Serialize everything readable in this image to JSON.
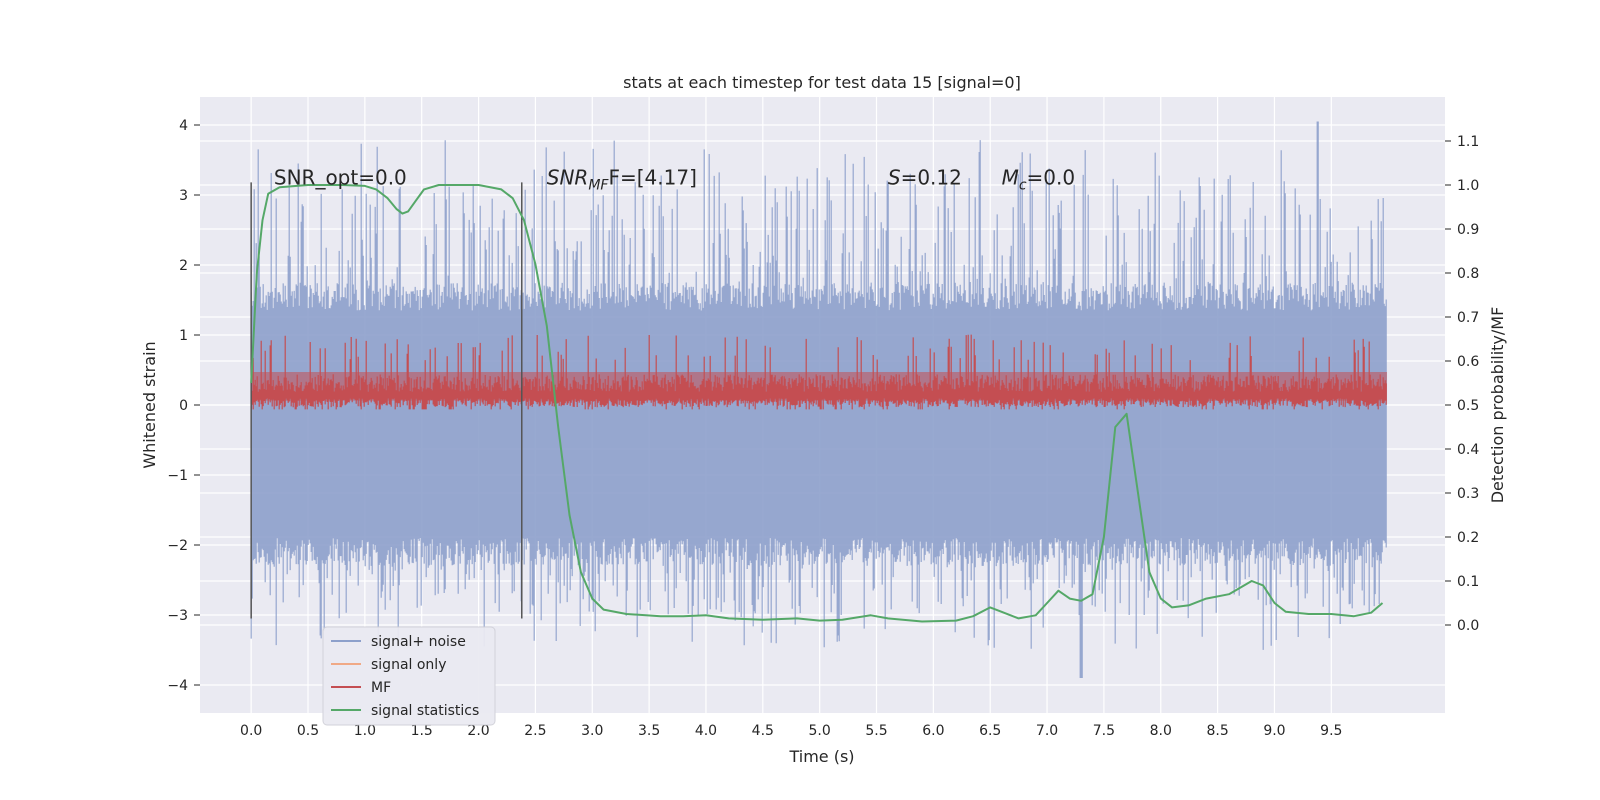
{
  "chart_data": {
    "type": "line",
    "title": "stats at each timestep for test data 15 [signal=0]",
    "xlabel": "Time (s)",
    "ylabel_left": "Whitened strain",
    "ylabel_right": "Detection probability/MF",
    "xlim": [
      -0.45,
      10.5
    ],
    "ylim_left": [
      -4.4,
      4.4
    ],
    "ylim_right": [
      -0.2,
      1.2
    ],
    "x_ticks": [
      "0.0",
      "0.5",
      "1.0",
      "1.5",
      "2.0",
      "2.5",
      "3.0",
      "3.5",
      "4.0",
      "4.5",
      "5.0",
      "5.5",
      "6.0",
      "6.5",
      "7.0",
      "7.5",
      "8.0",
      "8.5",
      "9.0",
      "9.5"
    ],
    "y_ticks_left": [
      "4",
      "3",
      "2",
      "1",
      "0",
      "−1",
      "−2",
      "−3",
      "−4"
    ],
    "y_ticks_right": [
      "1.1",
      "1.0",
      "0.9",
      "0.8",
      "0.7",
      "0.6",
      "0.5",
      "0.4",
      "0.3",
      "0.2",
      "0.1",
      "0.0"
    ],
    "grid": true,
    "colors": {
      "background": "#eaeaf2",
      "grid": "#ffffff",
      "noise": "#8da0cb",
      "signal_only": "#f0a986",
      "mf": "#c44e52",
      "stats": "#55a868",
      "marker": "#555555"
    },
    "annotations": [
      {
        "id": "snr-opt",
        "prefix": "SNR_opt",
        "italic": "",
        "sub": "",
        "suffix": "=0.0",
        "x": 0.2
      },
      {
        "id": "snr-mf",
        "prefix": "",
        "italic": "SNR",
        "sub": "MF",
        "suffix": "F=[4.17]",
        "x": 2.6
      },
      {
        "id": "s-stat",
        "prefix": "",
        "italic": "S",
        "sub": "",
        "suffix": "=0.12",
        "x": 5.6
      },
      {
        "id": "mc-stat",
        "prefix": "",
        "italic": "M",
        "sub": "c",
        "suffix": "=0.0",
        "x": 6.6
      }
    ],
    "annotation_y": 3.15,
    "vertical_markers": [
      {
        "x": 0.0,
        "ymin": -3.05,
        "ymax": 3.18
      },
      {
        "x": 2.38,
        "ymin": -3.05,
        "ymax": 3.18
      }
    ],
    "noise_series": {
      "name": "signal+ noise",
      "x_range": [
        0.0,
        9.99
      ],
      "band_min": -1.9,
      "band_max": 1.35,
      "spikes_up_max": 4.05,
      "spikes_down_min": -3.9,
      "peak_up": {
        "x": 9.38,
        "y": 4.05
      },
      "peak_down": {
        "x": 7.3,
        "y": -3.9
      }
    },
    "signal_only_series": {
      "name": "signal only",
      "x_range": [
        0.0,
        9.99
      ],
      "value": 0.0
    },
    "mf_series": {
      "name": "MF",
      "x_range": [
        0.0,
        9.99
      ],
      "band_min_right": 0.5,
      "band_max_right": 0.6,
      "spike_max_right": 0.66,
      "spike_min_right": 0.5
    },
    "stats_series": {
      "name": "signal statistics",
      "points": [
        [
          0.0,
          0.55
        ],
        [
          0.05,
          0.8
        ],
        [
          0.1,
          0.92
        ],
        [
          0.15,
          0.98
        ],
        [
          0.25,
          0.995
        ],
        [
          0.5,
          1.0
        ],
        [
          0.8,
          1.0
        ],
        [
          1.0,
          0.998
        ],
        [
          1.1,
          0.99
        ],
        [
          1.2,
          0.97
        ],
        [
          1.28,
          0.945
        ],
        [
          1.33,
          0.935
        ],
        [
          1.38,
          0.94
        ],
        [
          1.45,
          0.965
        ],
        [
          1.52,
          0.99
        ],
        [
          1.65,
          1.0
        ],
        [
          2.0,
          1.0
        ],
        [
          2.2,
          0.99
        ],
        [
          2.3,
          0.97
        ],
        [
          2.4,
          0.92
        ],
        [
          2.5,
          0.82
        ],
        [
          2.6,
          0.68
        ],
        [
          2.7,
          0.45
        ],
        [
          2.8,
          0.25
        ],
        [
          2.9,
          0.12
        ],
        [
          3.0,
          0.06
        ],
        [
          3.1,
          0.035
        ],
        [
          3.3,
          0.025
        ],
        [
          3.6,
          0.02
        ],
        [
          3.8,
          0.02
        ],
        [
          4.0,
          0.022
        ],
        [
          4.2,
          0.015
        ],
        [
          4.5,
          0.012
        ],
        [
          4.8,
          0.015
        ],
        [
          5.0,
          0.01
        ],
        [
          5.2,
          0.012
        ],
        [
          5.45,
          0.022
        ],
        [
          5.6,
          0.015
        ],
        [
          5.9,
          0.008
        ],
        [
          6.2,
          0.01
        ],
        [
          6.35,
          0.02
        ],
        [
          6.5,
          0.04
        ],
        [
          6.6,
          0.03
        ],
        [
          6.75,
          0.015
        ],
        [
          6.9,
          0.022
        ],
        [
          7.0,
          0.05
        ],
        [
          7.1,
          0.078
        ],
        [
          7.2,
          0.06
        ],
        [
          7.3,
          0.055
        ],
        [
          7.4,
          0.07
        ],
        [
          7.5,
          0.2
        ],
        [
          7.6,
          0.45
        ],
        [
          7.7,
          0.48
        ],
        [
          7.8,
          0.3
        ],
        [
          7.9,
          0.12
        ],
        [
          8.0,
          0.06
        ],
        [
          8.1,
          0.04
        ],
        [
          8.25,
          0.045
        ],
        [
          8.4,
          0.06
        ],
        [
          8.6,
          0.07
        ],
        [
          8.8,
          0.1
        ],
        [
          8.9,
          0.09
        ],
        [
          9.0,
          0.05
        ],
        [
          9.1,
          0.03
        ],
        [
          9.3,
          0.025
        ],
        [
          9.5,
          0.025
        ],
        [
          9.7,
          0.02
        ],
        [
          9.85,
          0.028
        ],
        [
          9.95,
          0.05
        ]
      ]
    },
    "legend": {
      "placement": "lower-left",
      "entries": [
        {
          "label": "signal+ noise",
          "color": "#8da0cb"
        },
        {
          "label": "signal only",
          "color": "#f0a986"
        },
        {
          "label": "MF",
          "color": "#c44e52"
        },
        {
          "label": "signal statistics",
          "color": "#55a868"
        }
      ]
    }
  }
}
